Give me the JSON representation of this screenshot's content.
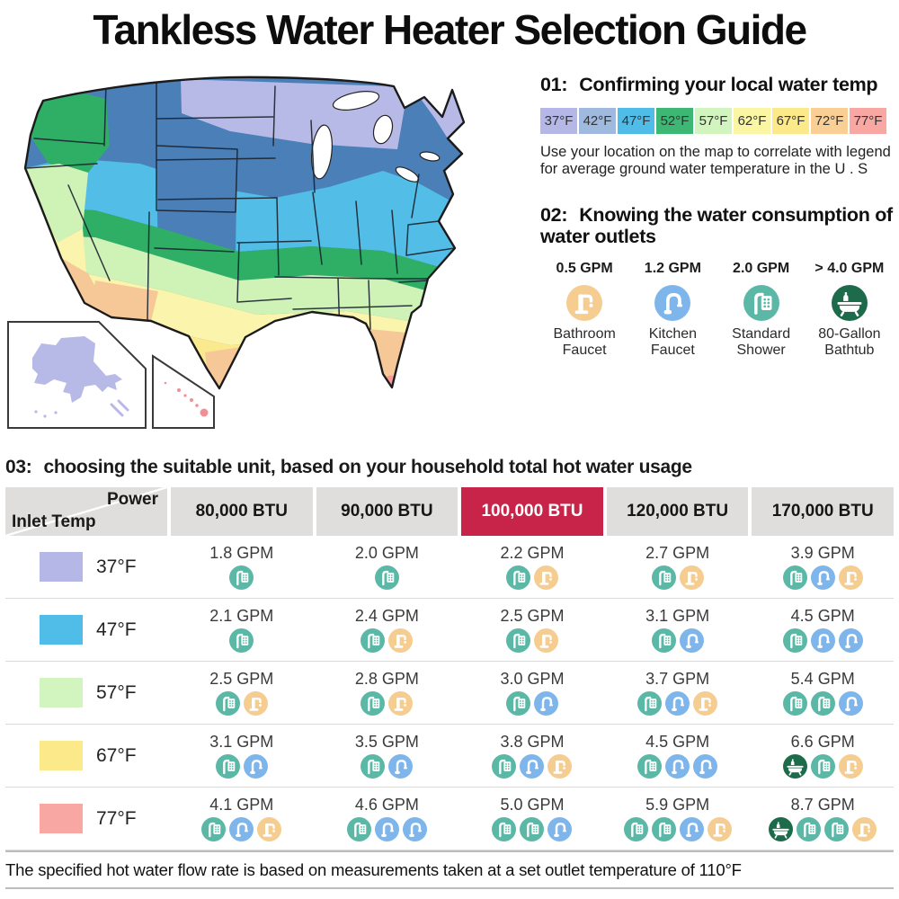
{
  "title": "Tankless Water Heater Selection Guide",
  "section1": {
    "number": "01:",
    "heading": "Confirming your local water temp",
    "legend": [
      {
        "label": "37°F",
        "color": "#b5b8e6"
      },
      {
        "label": "42°F",
        "color": "#9fbade"
      },
      {
        "label": "47°F",
        "color": "#4fbde8"
      },
      {
        "label": "52°F",
        "color": "#3cb874"
      },
      {
        "label": "57°F",
        "color": "#d2f5c0"
      },
      {
        "label": "62°F",
        "color": "#fbf6a4"
      },
      {
        "label": "67°F",
        "color": "#fce98a"
      },
      {
        "label": "72°F",
        "color": "#f9cf96"
      },
      {
        "label": "77°F",
        "color": "#f8a7a2"
      }
    ],
    "description": "Use your location on the map to correlate with legend for average ground water temperature in the U . S"
  },
  "section2": {
    "number": "02:",
    "heading": "Knowing the water consumption of water outlets",
    "outlets": [
      {
        "gpm": "0.5 GPM",
        "name": "Bathroom Faucet",
        "icon": "bathroom-faucet"
      },
      {
        "gpm": "1.2 GPM",
        "name": "Kitchen Faucet",
        "icon": "kitchen-faucet"
      },
      {
        "gpm": "2.0 GPM",
        "name": "Standard Shower",
        "icon": "shower"
      },
      {
        "gpm": "> 4.0 GPM",
        "name": "80-Gallon Bathtub",
        "icon": "bathtub"
      }
    ]
  },
  "section3": {
    "number": "03:",
    "heading": "choosing the suitable unit, based on your household total hot water usage",
    "corner_top": "Power",
    "corner_bottom": "Inlet Temp",
    "columns": [
      "80,000 BTU",
      "90,000 BTU",
      "100,000 BTU",
      "120,000 BTU",
      "170,000 BTU"
    ],
    "highlighted_column": "100,000 BTU",
    "highlight_color": "#c82349",
    "rows": [
      {
        "temp": "37°F",
        "swatch": "#b5b8e6",
        "cells": [
          {
            "gpm": "1.8 GPM",
            "icons": [
              "shower"
            ]
          },
          {
            "gpm": "2.0 GPM",
            "icons": [
              "shower"
            ]
          },
          {
            "gpm": "2.2 GPM",
            "icons": [
              "shower",
              "bathroom-faucet"
            ]
          },
          {
            "gpm": "2.7 GPM",
            "icons": [
              "shower",
              "bathroom-faucet"
            ]
          },
          {
            "gpm": "3.9 GPM",
            "icons": [
              "shower",
              "kitchen-faucet",
              "bathroom-faucet"
            ]
          }
        ]
      },
      {
        "temp": "47°F",
        "swatch": "#4fbde8",
        "cells": [
          {
            "gpm": "2.1 GPM",
            "icons": [
              "shower"
            ]
          },
          {
            "gpm": "2.4 GPM",
            "icons": [
              "shower",
              "bathroom-faucet"
            ]
          },
          {
            "gpm": "2.5 GPM",
            "icons": [
              "shower",
              "bathroom-faucet"
            ]
          },
          {
            "gpm": "3.1 GPM",
            "icons": [
              "shower",
              "kitchen-faucet"
            ]
          },
          {
            "gpm": "4.5 GPM",
            "icons": [
              "shower",
              "kitchen-faucet",
              "kitchen-faucet"
            ]
          }
        ]
      },
      {
        "temp": "57°F",
        "swatch": "#d2f5c0",
        "cells": [
          {
            "gpm": "2.5 GPM",
            "icons": [
              "shower",
              "bathroom-faucet"
            ]
          },
          {
            "gpm": "2.8 GPM",
            "icons": [
              "shower",
              "bathroom-faucet"
            ]
          },
          {
            "gpm": "3.0 GPM",
            "icons": [
              "shower",
              "kitchen-faucet"
            ]
          },
          {
            "gpm": "3.7 GPM",
            "icons": [
              "shower",
              "kitchen-faucet",
              "bathroom-faucet"
            ]
          },
          {
            "gpm": "5.4 GPM",
            "icons": [
              "shower",
              "shower",
              "kitchen-faucet"
            ]
          }
        ]
      },
      {
        "temp": "67°F",
        "swatch": "#fce98a",
        "cells": [
          {
            "gpm": "3.1 GPM",
            "icons": [
              "shower",
              "kitchen-faucet"
            ]
          },
          {
            "gpm": "3.5 GPM",
            "icons": [
              "shower",
              "kitchen-faucet"
            ]
          },
          {
            "gpm": "3.8 GPM",
            "icons": [
              "shower",
              "kitchen-faucet",
              "bathroom-faucet"
            ]
          },
          {
            "gpm": "4.5 GPM",
            "icons": [
              "shower",
              "kitchen-faucet",
              "kitchen-faucet"
            ]
          },
          {
            "gpm": "6.6 GPM",
            "icons": [
              "bathtub",
              "shower",
              "bathroom-faucet"
            ]
          }
        ]
      },
      {
        "temp": "77°F",
        "swatch": "#f8a7a2",
        "cells": [
          {
            "gpm": "4.1 GPM",
            "icons": [
              "shower",
              "kitchen-faucet",
              "bathroom-faucet"
            ]
          },
          {
            "gpm": "4.6 GPM",
            "icons": [
              "shower",
              "kitchen-faucet",
              "kitchen-faucet"
            ]
          },
          {
            "gpm": "5.0 GPM",
            "icons": [
              "shower",
              "shower",
              "kitchen-faucet"
            ]
          },
          {
            "gpm": "5.9 GPM",
            "icons": [
              "shower",
              "shower",
              "kitchen-faucet",
              "bathroom-faucet"
            ]
          },
          {
            "gpm": "8.7 GPM",
            "icons": [
              "bathtub",
              "shower",
              "shower",
              "bathroom-faucet"
            ]
          }
        ]
      }
    ]
  },
  "footer": "The specified hot water flow rate is based on measurements taken at a set outlet temperature of 110°F",
  "icon_colors": {
    "shower": "#5cb8a6",
    "kitchen-faucet": "#7eb5ea",
    "bathroom-faucet": "#f5cd90",
    "bathtub": "#1d6b4b"
  },
  "map_colors": {
    "f37": "#b7bae6",
    "f42": "#4a7fb8",
    "f47": "#52bde6",
    "f52": "#2fae66",
    "f57": "#cff2b6",
    "f62": "#faf4ad",
    "f67": "#fbe98e",
    "f72": "#f7c897",
    "f77": "#f79b97",
    "alaska": "#b7bae6",
    "hawaii": "#f28f96"
  }
}
